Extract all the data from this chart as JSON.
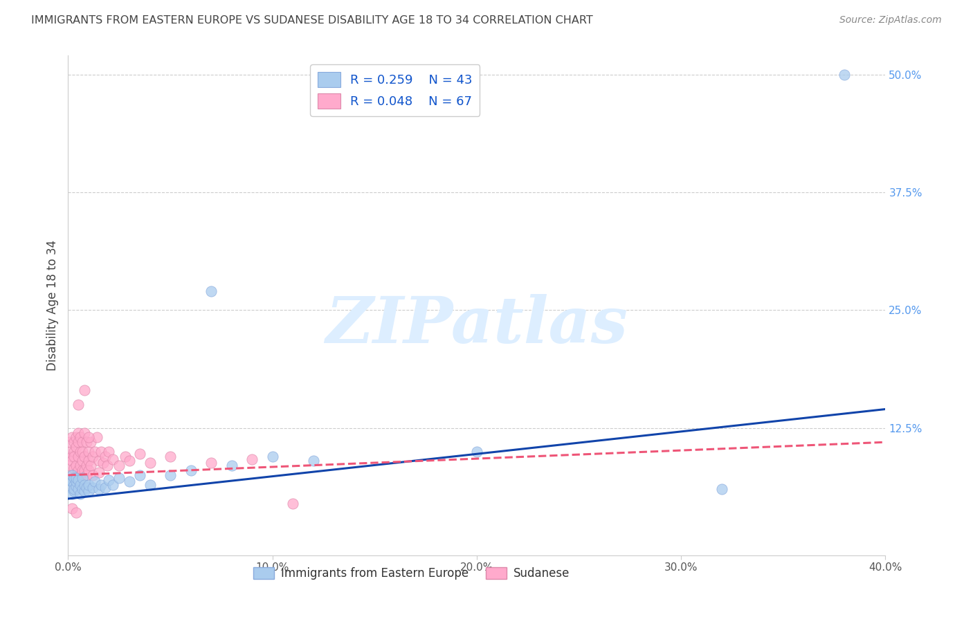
{
  "title": "IMMIGRANTS FROM EASTERN EUROPE VS SUDANESE DISABILITY AGE 18 TO 34 CORRELATION CHART",
  "source": "Source: ZipAtlas.com",
  "ylabel": "Disability Age 18 to 34",
  "xlim": [
    0.0,
    0.4
  ],
  "ylim": [
    -0.01,
    0.52
  ],
  "xticks": [
    0.0,
    0.1,
    0.2,
    0.3,
    0.4
  ],
  "xtick_labels": [
    "0.0%",
    "10.0%",
    "20.0%",
    "30.0%",
    "40.0%"
  ],
  "yticks": [
    0.0,
    0.125,
    0.25,
    0.375,
    0.5
  ],
  "ytick_labels": [
    "",
    "12.5%",
    "25.0%",
    "37.5%",
    "50.0%"
  ],
  "blue_R": 0.259,
  "blue_N": 43,
  "pink_R": 0.048,
  "pink_N": 67,
  "blue_label": "Immigrants from Eastern Europe",
  "pink_label": "Sudanese",
  "background_color": "#ffffff",
  "grid_color": "#cccccc",
  "title_color": "#444444",
  "axis_label_color": "#444444",
  "ytick_color": "#5599ee",
  "blue_scatter_color": "#aaccee",
  "pink_scatter_color": "#ffaacc",
  "blue_line_color": "#1144aa",
  "pink_line_color": "#ee5577",
  "watermark_text": "ZIPatlas",
  "watermark_color": "#ddeeff",
  "blue_points_x": [
    0.001,
    0.001,
    0.002,
    0.002,
    0.002,
    0.003,
    0.003,
    0.003,
    0.003,
    0.004,
    0.004,
    0.004,
    0.005,
    0.005,
    0.006,
    0.006,
    0.007,
    0.007,
    0.008,
    0.008,
    0.009,
    0.01,
    0.01,
    0.012,
    0.013,
    0.015,
    0.016,
    0.018,
    0.02,
    0.022,
    0.025,
    0.03,
    0.035,
    0.04,
    0.05,
    0.06,
    0.07,
    0.08,
    0.1,
    0.12,
    0.2,
    0.32,
    0.38
  ],
  "blue_points_y": [
    0.062,
    0.07,
    0.055,
    0.068,
    0.075,
    0.058,
    0.065,
    0.072,
    0.06,
    0.063,
    0.068,
    0.072,
    0.06,
    0.07,
    0.055,
    0.065,
    0.06,
    0.072,
    0.058,
    0.065,
    0.062,
    0.058,
    0.065,
    0.062,
    0.068,
    0.06,
    0.065,
    0.062,
    0.07,
    0.065,
    0.072,
    0.068,
    0.075,
    0.065,
    0.075,
    0.08,
    0.27,
    0.085,
    0.095,
    0.09,
    0.1,
    0.06,
    0.5
  ],
  "pink_points_x": [
    0.001,
    0.001,
    0.001,
    0.002,
    0.002,
    0.002,
    0.002,
    0.003,
    0.003,
    0.003,
    0.003,
    0.003,
    0.004,
    0.004,
    0.004,
    0.004,
    0.005,
    0.005,
    0.005,
    0.005,
    0.005,
    0.006,
    0.006,
    0.006,
    0.006,
    0.007,
    0.007,
    0.007,
    0.007,
    0.008,
    0.008,
    0.008,
    0.009,
    0.009,
    0.009,
    0.01,
    0.01,
    0.01,
    0.011,
    0.011,
    0.012,
    0.012,
    0.013,
    0.014,
    0.015,
    0.015,
    0.016,
    0.017,
    0.018,
    0.019,
    0.02,
    0.022,
    0.025,
    0.028,
    0.03,
    0.035,
    0.04,
    0.05,
    0.07,
    0.09,
    0.005,
    0.008,
    0.01,
    0.003,
    0.002,
    0.004,
    0.11
  ],
  "pink_points_y": [
    0.1,
    0.085,
    0.11,
    0.095,
    0.075,
    0.115,
    0.09,
    0.1,
    0.082,
    0.11,
    0.07,
    0.095,
    0.105,
    0.085,
    0.115,
    0.075,
    0.12,
    0.095,
    0.08,
    0.11,
    0.065,
    0.1,
    0.085,
    0.115,
    0.075,
    0.11,
    0.09,
    0.08,
    0.1,
    0.12,
    0.095,
    0.08,
    0.11,
    0.085,
    0.075,
    0.1,
    0.09,
    0.08,
    0.11,
    0.085,
    0.095,
    0.075,
    0.1,
    0.115,
    0.09,
    0.078,
    0.1,
    0.088,
    0.095,
    0.085,
    0.1,
    0.092,
    0.085,
    0.095,
    0.09,
    0.098,
    0.088,
    0.095,
    0.088,
    0.092,
    0.15,
    0.165,
    0.115,
    0.06,
    0.04,
    0.035,
    0.045
  ],
  "blue_trend_x": [
    0.0,
    0.4
  ],
  "blue_trend_y": [
    0.05,
    0.145
  ],
  "pink_trend_x": [
    0.0,
    0.4
  ],
  "pink_trend_y": [
    0.075,
    0.11
  ]
}
